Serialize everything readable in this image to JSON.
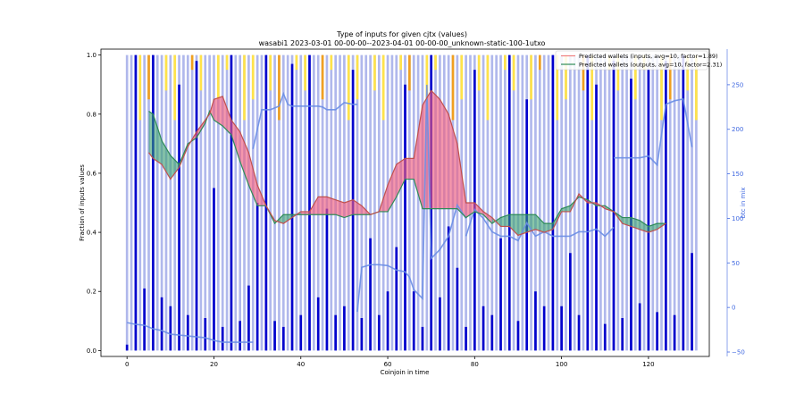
{
  "chart_data": {
    "type": "bar",
    "title": "Type of inputs for given cjtx (values)",
    "subtitle": "wasabi1 2023-03-01 00-00-00--2023-04-01 00-00-00_unknown-static-100-1utxo",
    "xlabel": "Coinjoin in time",
    "ylabel": "Fraction of inputs values",
    "y2label": "btc in mix",
    "xlim": [
      -6,
      134
    ],
    "ylim": [
      -0.02,
      1.02
    ],
    "y2lim": [
      -55,
      290
    ],
    "x_ticks": [
      "0",
      "20",
      "40",
      "60",
      "80",
      "100",
      "120"
    ],
    "y_ticks": [
      "0.0",
      "0.2",
      "0.4",
      "0.6",
      "0.8",
      "1.0"
    ],
    "y2_ticks": [
      "−50",
      "0",
      "50",
      "100",
      "150",
      "200",
      "250"
    ],
    "legend": [
      {
        "label": "Predicted wallets (inputs, avg=10, factor=1.89)",
        "color": "#f08080"
      },
      {
        "label": "Predicted wallets (outputs, avg=10, factor=2.31)",
        "color": "#2e8b57"
      }
    ],
    "legend_position": "top-right",
    "bars": {
      "x_start": 0,
      "x_end": 131,
      "dark_color": "#0000cd",
      "light_color": "#b0b8ec",
      "yellow_color": "#ffe34a",
      "orange_color": "#f0a020",
      "dark_every": 2,
      "dark_heights": [
        0.02,
        1.0,
        0.21,
        1.0,
        0.18,
        0.15,
        0.9,
        0.12,
        0.98,
        0.11,
        0.55,
        0.08,
        1.0,
        0.1,
        0.22,
        0.5,
        1.0,
        0.1,
        0.08,
        0.97,
        0.12,
        1.0,
        0.18,
        0.48,
        0.12,
        0.15,
        0.95,
        0.11,
        0.38,
        0.12,
        0.2,
        0.35,
        0.9,
        0.2,
        0.08,
        1.0,
        0.18,
        0.42,
        0.28,
        0.08,
        0.95,
        0.15,
        0.12,
        0.38,
        1.0,
        0.1,
        0.85,
        0.2,
        0.15,
        1.0,
        0.15,
        0.33,
        0.12,
        1.0,
        0.9,
        0.09,
        0.98,
        0.11,
        0.92,
        0.16,
        0.95,
        0.13,
        0.98,
        0.12,
        1.0,
        0.33
      ]
    },
    "btc_in_mix": {
      "color": "#6a8ee6",
      "segments": [
        {
          "x": [
            0,
            2,
            4,
            6,
            8,
            10,
            12,
            14,
            16,
            18,
            20,
            22,
            24,
            26,
            28,
            29
          ],
          "y": [
            -17,
            -19,
            -20,
            -24,
            -26,
            -30,
            -31,
            -32,
            -33,
            -34,
            -37,
            -39,
            -39,
            -39,
            -39,
            -39
          ]
        },
        {
          "x": [
            29,
            31,
            33,
            35,
            36,
            37,
            38,
            40,
            42,
            44,
            45,
            46,
            48,
            50,
            52,
            53
          ],
          "y": [
            178,
            222,
            222,
            226,
            240,
            228,
            226,
            226,
            226,
            226,
            225,
            222,
            222,
            230,
            228,
            228
          ]
        },
        {
          "x": [
            53,
            54,
            56,
            58,
            60,
            62,
            64,
            65,
            66,
            68,
            69,
            70,
            72,
            74,
            76,
            78
          ],
          "y": [
            -5,
            45,
            48,
            48,
            47,
            42,
            40,
            34,
            20,
            10,
            250,
            55,
            65,
            80,
            115,
            100
          ]
        },
        {
          "x": [
            78,
            80,
            82,
            84,
            86,
            88,
            90,
            92,
            94,
            96,
            98,
            100,
            102,
            104,
            106,
            108,
            110,
            112
          ],
          "y": [
            80,
            110,
            100,
            85,
            80,
            80,
            75,
            95,
            80,
            85,
            80,
            80,
            80,
            85,
            85,
            88,
            80,
            90
          ]
        },
        {
          "x": [
            112,
            114,
            116,
            118,
            120,
            122,
            124,
            126,
            128,
            130
          ],
          "y": [
            168,
            168,
            168,
            168,
            170,
            160,
            228,
            232,
            234,
            180
          ]
        }
      ]
    },
    "predicted_wallets_inputs": {
      "x": [
        5,
        6,
        8,
        10,
        12,
        14,
        16,
        18,
        19,
        20,
        22,
        24,
        26,
        28,
        30,
        32,
        34,
        36,
        38,
        40,
        42,
        44,
        46,
        48,
        50,
        52,
        54,
        56,
        58,
        60,
        62,
        64,
        66,
        68,
        70,
        72,
        74,
        76,
        78,
        80,
        82,
        84,
        86,
        88,
        90,
        92,
        94,
        96,
        98,
        100,
        102,
        104,
        106,
        108,
        110,
        112,
        114,
        116,
        118,
        120,
        122,
        124
      ],
      "y": [
        0.67,
        0.65,
        0.63,
        0.58,
        0.62,
        0.69,
        0.74,
        0.78,
        0.8,
        0.85,
        0.86,
        0.78,
        0.74,
        0.67,
        0.56,
        0.49,
        0.44,
        0.43,
        0.45,
        0.47,
        0.47,
        0.52,
        0.52,
        0.51,
        0.5,
        0.51,
        0.49,
        0.46,
        0.47,
        0.56,
        0.63,
        0.65,
        0.65,
        0.83,
        0.88,
        0.85,
        0.8,
        0.7,
        0.5,
        0.5,
        0.47,
        0.45,
        0.42,
        0.42,
        0.39,
        0.4,
        0.41,
        0.4,
        0.41,
        0.47,
        0.47,
        0.53,
        0.5,
        0.5,
        0.48,
        0.47,
        0.43,
        0.42,
        0.41,
        0.4,
        0.41,
        0.43
      ]
    },
    "predicted_wallets_outputs": {
      "x": [
        5,
        6,
        8,
        10,
        12,
        14,
        16,
        18,
        19,
        20,
        22,
        24,
        26,
        28,
        30,
        32,
        34,
        36,
        38,
        40,
        42,
        44,
        46,
        48,
        50,
        52,
        54,
        56,
        58,
        60,
        62,
        64,
        66,
        68,
        70,
        72,
        74,
        76,
        78,
        80,
        82,
        84,
        86,
        88,
        90,
        92,
        94,
        96,
        98,
        100,
        102,
        104,
        106,
        108,
        110,
        112,
        114,
        116,
        118,
        120,
        122,
        124
      ],
      "y": [
        0.81,
        0.8,
        0.71,
        0.66,
        0.63,
        0.7,
        0.72,
        0.77,
        0.81,
        0.78,
        0.76,
        0.73,
        0.64,
        0.56,
        0.49,
        0.49,
        0.43,
        0.46,
        0.46,
        0.46,
        0.46,
        0.46,
        0.46,
        0.46,
        0.45,
        0.46,
        0.46,
        0.46,
        0.47,
        0.47,
        0.52,
        0.58,
        0.58,
        0.48,
        0.48,
        0.48,
        0.48,
        0.48,
        0.45,
        0.47,
        0.46,
        0.43,
        0.45,
        0.46,
        0.46,
        0.46,
        0.46,
        0.43,
        0.43,
        0.48,
        0.49,
        0.52,
        0.51,
        0.49,
        0.49,
        0.47,
        0.45,
        0.45,
        0.44,
        0.42,
        0.43,
        0.43
      ]
    }
  }
}
